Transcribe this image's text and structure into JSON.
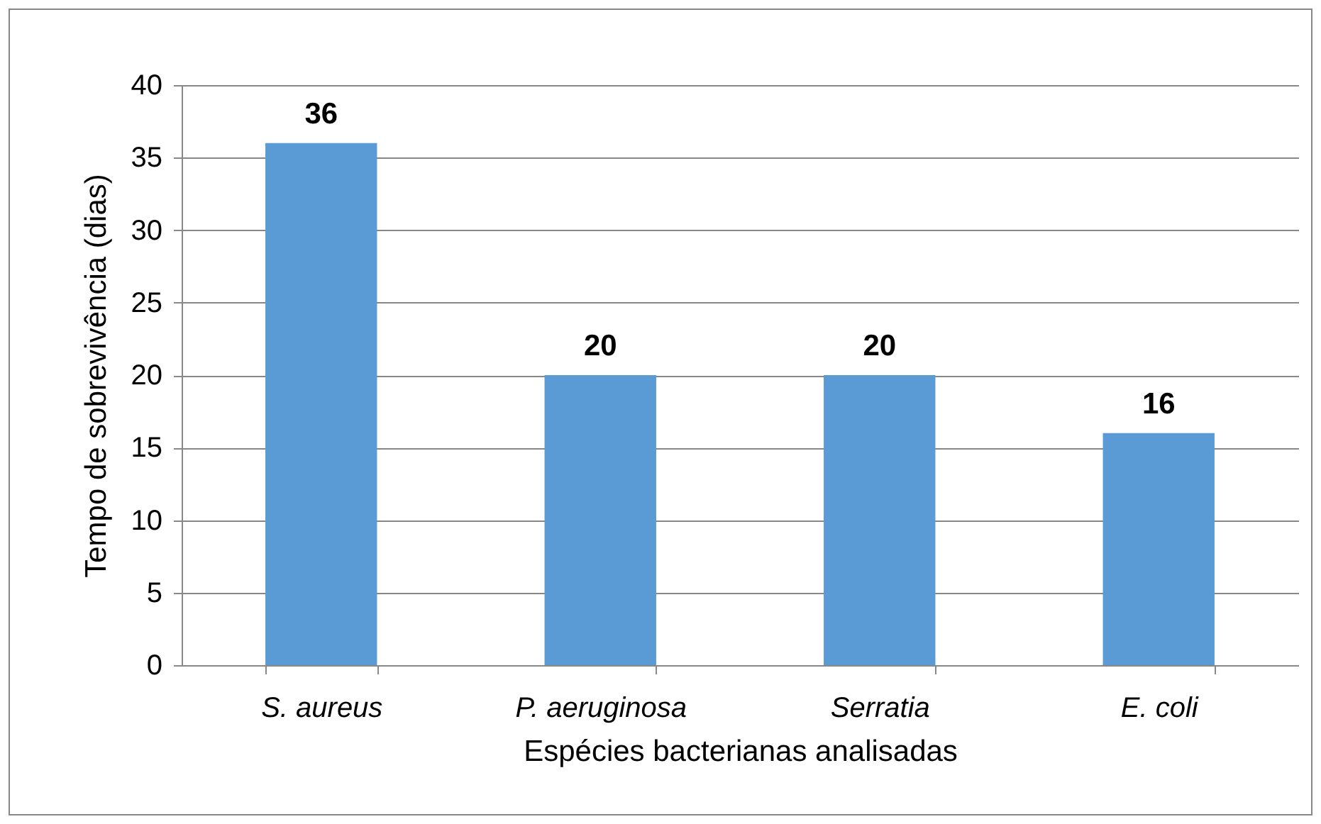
{
  "chart_data": {
    "type": "bar",
    "xlabel": "Espécies bacterianas analisadas",
    "ylabel": "Tempo de sobrevivência (dias)",
    "categories": [
      "S. aureus",
      "P. aeruginosa",
      "Serratia",
      "E. coli"
    ],
    "values": [
      36,
      20,
      20,
      16
    ],
    "color": "#5b9bd5",
    "ylim": [
      0,
      40
    ],
    "yticks": [
      0,
      5,
      10,
      15,
      20,
      25,
      30,
      35,
      40
    ],
    "grid": "y",
    "data_labels": true
  }
}
